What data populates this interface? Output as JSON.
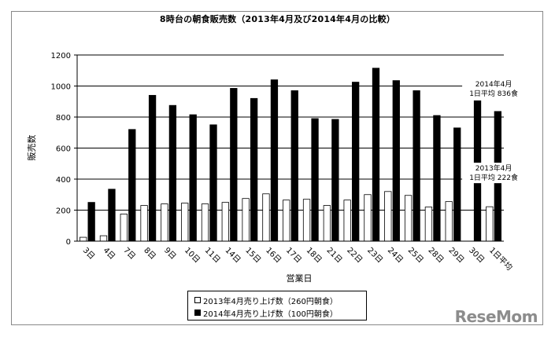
{
  "chart_data": {
    "type": "bar",
    "title": "8時台の朝食販売数（2013年4月及び2014年4月の比較）",
    "xlabel": "営業日",
    "ylabel": "販売数",
    "ylim": [
      0,
      1200
    ],
    "yticks": [
      0,
      200,
      400,
      600,
      800,
      1000,
      1200
    ],
    "grid": true,
    "legend_position": "bottom",
    "categories": [
      "3日",
      "4日",
      "7日",
      "8日",
      "9日",
      "10日",
      "11日",
      "14日",
      "15日",
      "16日",
      "17日",
      "18日",
      "21日",
      "22日",
      "23日",
      "24日",
      "25日",
      "28日",
      "29日",
      "30日",
      "1日平均"
    ],
    "series": [
      {
        "name": "2013年4月売り上げ数（260円朝食）",
        "color": "#ffffff",
        "values": [
          25,
          35,
          175,
          230,
          240,
          245,
          240,
          250,
          275,
          305,
          265,
          270,
          230,
          265,
          300,
          320,
          295,
          220,
          255,
          0,
          222
        ]
      },
      {
        "name": "2014年4月売り上げ数（100円朝食）",
        "color": "#000000",
        "values": [
          250,
          335,
          720,
          940,
          875,
          815,
          750,
          985,
          920,
          1040,
          970,
          790,
          785,
          1025,
          1115,
          1035,
          970,
          810,
          730,
          905,
          836
        ]
      }
    ],
    "annotations": [
      {
        "line1": "2014年4月",
        "line2": "1日平均 836食"
      },
      {
        "line1": "2013年4月",
        "line2": "1日平均 222食"
      }
    ]
  },
  "watermark": "ReseMom"
}
